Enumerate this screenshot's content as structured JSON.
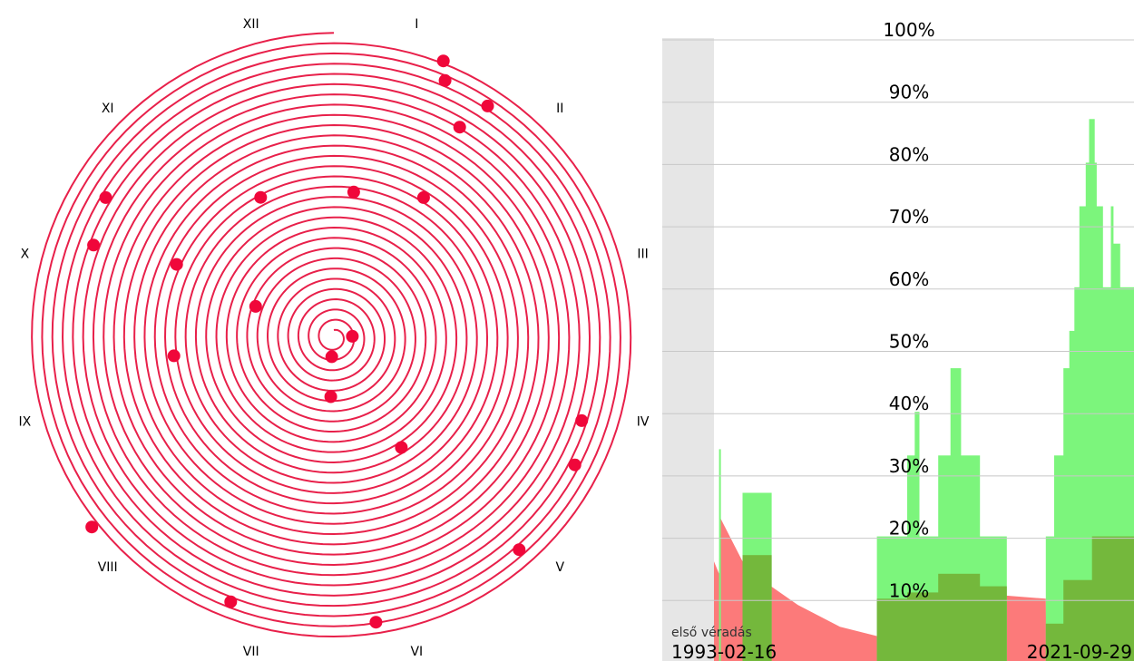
{
  "colors": {
    "spiral": "#e8204a",
    "dot": "#f0073a",
    "green": "#7cf57c",
    "darkgreen": "#74b83c",
    "salmon": "#fc7a7a",
    "gray": "#e6e6e6",
    "grid": "#c8c8c8"
  },
  "chart_data": [
    {
      "type": "scatter",
      "name": "spiral-calendar",
      "month_labels": [
        "I",
        "II",
        "III",
        "IV",
        "V",
        "VI",
        "VII",
        "VIII",
        "IX",
        "X",
        "XI",
        "XII"
      ],
      "turns": 29,
      "events_polar": [
        {
          "month": 0.72,
          "turn": 28.3
        },
        {
          "month": 0.78,
          "turn": 26.6
        },
        {
          "month": 1.12,
          "turn": 26.4
        },
        {
          "month": 1.03,
          "turn": 23.2
        },
        {
          "month": 1.09,
          "turn": 15.5
        },
        {
          "month": 0.26,
          "turn": 13.6
        },
        {
          "month": 11.08,
          "turn": 14.7
        },
        {
          "month": 10.05,
          "turn": 25.4
        },
        {
          "month": 9.7,
          "turn": 24.4
        },
        {
          "month": 9.83,
          "turn": 16.2
        },
        {
          "month": 8.78,
          "turn": 15.0
        },
        {
          "month": 9.72,
          "turn": 7.5
        },
        {
          "month": 2.9,
          "turn": 1.1
        },
        {
          "month": 6.2,
          "turn": 1.2
        },
        {
          "month": 6.1,
          "turn": 5.1
        },
        {
          "month": 3.62,
          "turn": 24.8
        },
        {
          "month": 3.93,
          "turn": 25.9
        },
        {
          "month": 4.63,
          "turn": 26.8
        },
        {
          "month": 4.95,
          "turn": 11.9
        },
        {
          "month": 5.72,
          "turn": 27.4
        },
        {
          "month": 6.71,
          "turn": 27.0
        },
        {
          "month": 7.73,
          "turn": 29.3
        }
      ]
    },
    {
      "type": "area",
      "name": "percentage-history",
      "y_ticks": [
        "10%",
        "20%",
        "30%",
        "40%",
        "50%",
        "60%",
        "70%",
        "80%",
        "90%",
        "100%"
      ],
      "ylim": [
        0,
        100
      ],
      "start_label": "1993-02-16",
      "end_label": "2021-09-29",
      "first_donation_label": "első véradás",
      "green_steps": [
        [
          0.0,
          0.012,
          0
        ],
        [
          0.012,
          0.015,
          34
        ],
        [
          0.015,
          0.068,
          0
        ],
        [
          0.068,
          0.136,
          27
        ],
        [
          0.136,
          0.388,
          0
        ],
        [
          0.388,
          0.46,
          20
        ],
        [
          0.46,
          0.478,
          33
        ],
        [
          0.478,
          0.488,
          40
        ],
        [
          0.488,
          0.534,
          20
        ],
        [
          0.534,
          0.563,
          33
        ],
        [
          0.563,
          0.587,
          47
        ],
        [
          0.587,
          0.632,
          33
        ],
        [
          0.632,
          0.696,
          20
        ],
        [
          0.696,
          0.79,
          0
        ],
        [
          0.79,
          0.81,
          20
        ],
        [
          0.81,
          0.832,
          33
        ],
        [
          0.832,
          0.846,
          47
        ],
        [
          0.846,
          0.858,
          53
        ],
        [
          0.858,
          0.87,
          60
        ],
        [
          0.87,
          0.885,
          73
        ],
        [
          0.885,
          0.893,
          80
        ],
        [
          0.893,
          0.905,
          87
        ],
        [
          0.905,
          0.91,
          80
        ],
        [
          0.91,
          0.925,
          73
        ],
        [
          0.925,
          0.945,
          60
        ],
        [
          0.945,
          0.95,
          73
        ],
        [
          0.95,
          0.966,
          67
        ],
        [
          0.966,
          1.0,
          60
        ]
      ],
      "olive_steps": [
        [
          0.0,
          0.068,
          0
        ],
        [
          0.068,
          0.136,
          17
        ],
        [
          0.136,
          0.388,
          0
        ],
        [
          0.388,
          0.46,
          10
        ],
        [
          0.46,
          0.534,
          11
        ],
        [
          0.534,
          0.632,
          14
        ],
        [
          0.632,
          0.696,
          12
        ],
        [
          0.696,
          0.79,
          0
        ],
        [
          0.79,
          0.832,
          6
        ],
        [
          0.832,
          0.9,
          13
        ],
        [
          0.9,
          1.0,
          20
        ]
      ],
      "salmon_curve": [
        [
          0.0,
          16
        ],
        [
          0.012,
          14
        ],
        [
          0.015,
          23
        ],
        [
          0.068,
          16
        ],
        [
          0.136,
          12
        ],
        [
          0.2,
          9
        ],
        [
          0.3,
          5.5
        ],
        [
          0.388,
          4
        ],
        [
          0.46,
          4
        ],
        [
          0.534,
          12
        ],
        [
          0.632,
          11
        ],
        [
          0.696,
          10.5
        ],
        [
          0.79,
          10
        ],
        [
          0.791,
          4
        ],
        [
          1.0,
          4
        ]
      ]
    }
  ]
}
